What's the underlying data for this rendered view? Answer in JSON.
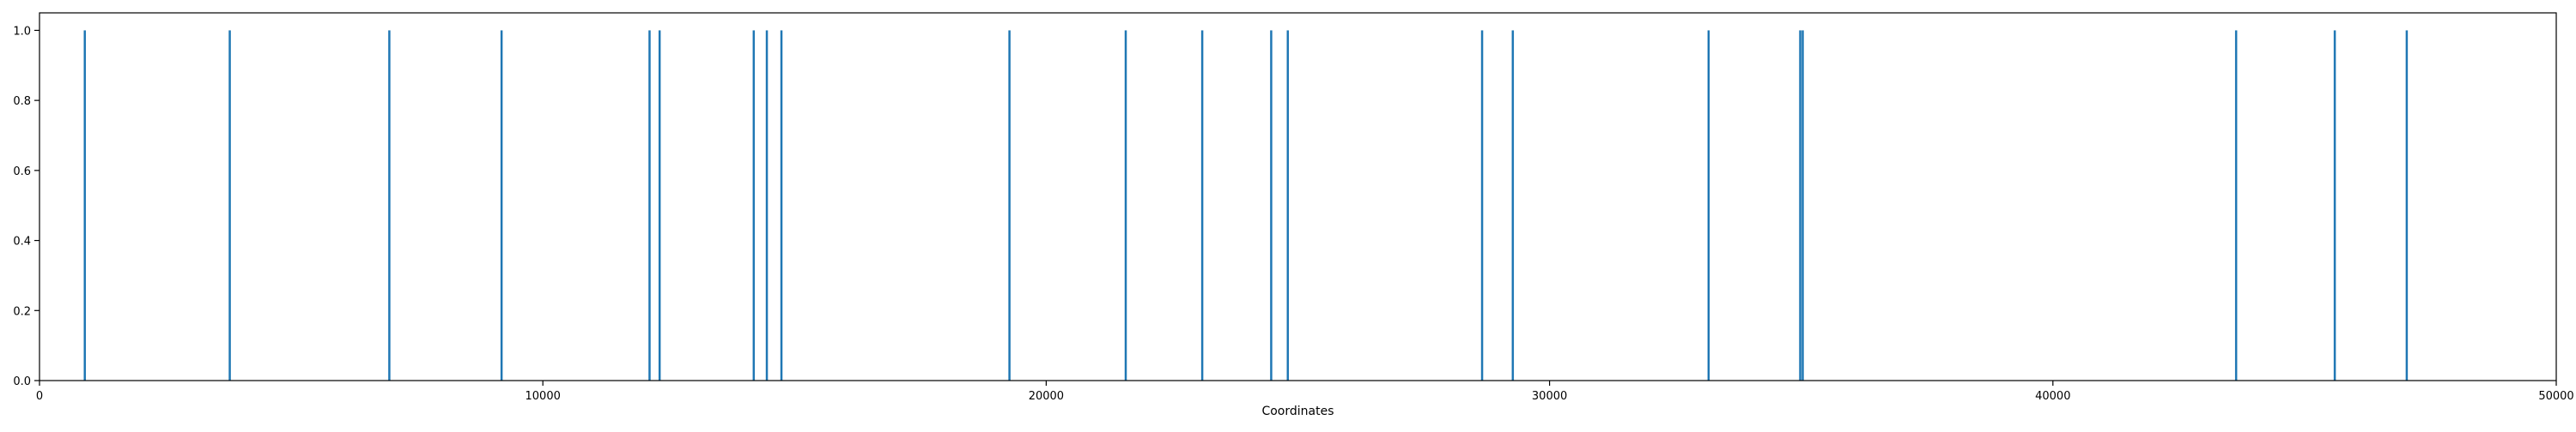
{
  "chart_data": {
    "type": "bar",
    "title": "",
    "xlabel": "Coordinates",
    "ylabel": "",
    "xlim": [
      0,
      50000
    ],
    "ylim": [
      0,
      1.05
    ],
    "xticks": [
      0,
      10000,
      20000,
      30000,
      40000,
      50000
    ],
    "xtick_labels": [
      "0",
      "10000",
      "20000",
      "30000",
      "40000",
      "50000"
    ],
    "yticks": [
      0.0,
      0.2,
      0.4,
      0.6,
      0.8,
      1.0
    ],
    "ytick_labels": [
      "0.0",
      "0.2",
      "0.4",
      "0.6",
      "0.8",
      "1.0"
    ],
    "grid": false,
    "legend": "none",
    "bar_color": "#1f77b4",
    "positions": [
      900,
      3780,
      6950,
      9180,
      12120,
      12320,
      14190,
      14450,
      14740,
      19270,
      21580,
      23100,
      24470,
      24800,
      28660,
      29270,
      33160,
      34980,
      35030,
      43640,
      45600,
      47030
    ],
    "values": [
      1,
      1,
      1,
      1,
      1,
      1,
      1,
      1,
      1,
      1,
      1,
      1,
      1,
      1,
      1,
      1,
      1,
      1,
      1,
      1,
      1,
      1
    ]
  }
}
